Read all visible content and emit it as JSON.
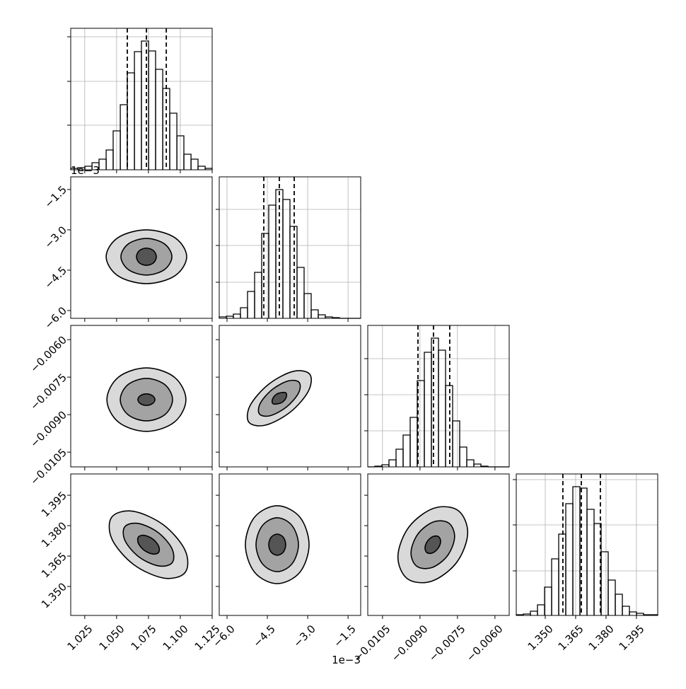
{
  "chart_data": {
    "type": "corner",
    "grid": true,
    "color": "#000000",
    "grid_color": "#b0b0b0",
    "contour_fills": [
      "#d9d9d9",
      "#a3a3a3",
      "#555555"
    ],
    "params": [
      {
        "lim": [
          1.014,
          1.125
        ],
        "ticks": [
          {
            "value": 1.025,
            "label": "1.025"
          },
          {
            "value": 1.05,
            "label": "1.050"
          },
          {
            "value": 1.075,
            "label": "1.075"
          },
          {
            "value": 1.1,
            "label": "1.100"
          },
          {
            "value": 1.125,
            "label": "1.125"
          }
        ],
        "quantiles": [
          1.0584,
          1.0734,
          1.089
        ],
        "hist": {
          "bins": [
            1.014,
            1.0196,
            1.0251,
            1.0307,
            1.0362,
            1.0418,
            1.0473,
            1.0529,
            1.0584,
            1.064,
            1.0695,
            1.0751,
            1.0806,
            1.0862,
            1.0917,
            1.0973,
            1.1028,
            1.1084,
            1.1139,
            1.1195,
            1.125
          ],
          "counts": [
            2,
            3,
            5,
            10,
            15,
            28,
            55,
            92,
            137,
            167,
            182,
            168,
            142,
            115,
            80,
            48,
            22,
            15,
            5,
            2
          ],
          "ylim": [
            0,
            200
          ],
          "yticks": [
            63,
            125,
            188
          ]
        }
      },
      {
        "lim": [
          -6.29,
          -1.03
        ],
        "offset_text": "1e−3",
        "ticks": [
          {
            "value": -6.0,
            "label": "−6.0"
          },
          {
            "value": -4.5,
            "label": "−4.5"
          },
          {
            "value": -3.0,
            "label": "−3.0"
          },
          {
            "value": -1.5,
            "label": "−1.5"
          }
        ],
        "quantiles": [
          -4.633,
          -4.055,
          -3.502
        ],
        "hist": {
          "bins": [
            -6.29,
            -6.027,
            -5.764,
            -5.501,
            -5.238,
            -4.975,
            -4.712,
            -4.449,
            -4.186,
            -3.923,
            -3.66,
            -3.397,
            -3.134,
            -2.871,
            -2.608,
            -2.345,
            -2.082,
            -1.819,
            -1.556,
            -1.293,
            -1.03
          ],
          "counts": [
            2,
            3,
            6,
            15,
            38,
            65,
            120,
            160,
            182,
            168,
            130,
            72,
            35,
            12,
            5,
            2,
            1,
            0,
            0,
            0
          ],
          "ylim": [
            0,
            200
          ],
          "yticks": [
            51,
            103,
            154
          ]
        }
      },
      {
        "lim": [
          -0.01109,
          -0.00543
        ],
        "ticks": [
          {
            "value": -0.0105,
            "label": "−0.0105"
          },
          {
            "value": -0.009,
            "label": "−0.0090"
          },
          {
            "value": -0.0075,
            "label": "−0.0075"
          },
          {
            "value": -0.006,
            "label": "−0.0060"
          }
        ],
        "quantiles": [
          -0.00908,
          -0.00846,
          -0.00781
        ],
        "hist": {
          "bins": [
            -0.01109,
            -0.010807,
            -0.010524,
            -0.010241,
            -0.009958,
            -0.009675,
            -0.009392,
            -0.009109,
            -0.008826,
            -0.008543,
            -0.00826,
            -0.007977,
            -0.007694,
            -0.007411,
            -0.007128,
            -0.006845,
            -0.006562,
            -0.006279,
            -0.005996,
            -0.005713,
            -0.00543
          ],
          "counts": [
            0,
            1,
            3,
            10,
            25,
            45,
            70,
            122,
            162,
            182,
            165,
            115,
            65,
            28,
            10,
            4,
            1,
            0,
            0,
            0
          ],
          "ylim": [
            0,
            200
          ],
          "yticks": [
            51,
            102,
            153
          ]
        }
      },
      {
        "lim": [
          1.3357,
          1.4055
        ],
        "ticks": [
          {
            "value": 1.35,
            "label": "1.350"
          },
          {
            "value": 1.365,
            "label": "1.365"
          },
          {
            "value": 1.38,
            "label": "1.380"
          },
          {
            "value": 1.395,
            "label": "1.395"
          }
        ],
        "quantiles": [
          1.3587,
          1.3678,
          1.3772
        ],
        "hist": {
          "bins": [
            1.3357,
            1.33919,
            1.34268,
            1.34617,
            1.34966,
            1.35315,
            1.35664,
            1.36013,
            1.36362,
            1.36711,
            1.3706,
            1.37409,
            1.37758,
            1.38107,
            1.38456,
            1.38805,
            1.39154,
            1.39503,
            1.39852,
            1.40201,
            1.4055
          ],
          "counts": [
            1,
            2,
            6,
            15,
            40,
            80,
            115,
            158,
            182,
            180,
            150,
            130,
            90,
            50,
            30,
            13,
            5,
            3,
            1,
            1
          ],
          "ylim": [
            0,
            200
          ],
          "yticks": [
            63,
            128,
            192
          ]
        }
      }
    ],
    "contours": [
      {
        "x_param": 0,
        "y_param": 1,
        "levels": [
          {
            "x": [
              1.105,
              1.0957,
              1.0734,
              1.0511,
              1.0418,
              1.0511,
              1.0734,
              1.0957
            ],
            "y": [
              -4.0,
              -3.29,
              -3.0,
              -3.29,
              -4.0,
              -4.71,
              -5.0,
              -4.71
            ]
          },
          {
            "x": [
              1.0934,
              1.0875,
              1.0734,
              1.0593,
              1.0534,
              1.0593,
              1.0734,
              1.0875
            ],
            "y": [
              -4.0,
              -3.52,
              -3.32,
              -3.52,
              -4.0,
              -4.48,
              -4.68,
              -4.48
            ]
          },
          {
            "x": [
              1.0812,
              1.0789,
              1.0734,
              1.0679,
              1.0656,
              1.0679,
              1.0734,
              1.0789
            ],
            "y": [
              -4.0,
              -3.77,
              -3.68,
              -3.77,
              -4.0,
              -4.23,
              -4.32,
              -4.23
            ]
          }
        ]
      },
      {
        "x_param": 0,
        "y_param": 2,
        "levels": [
          {
            "x": [
              1.1044,
              1.0953,
              1.0734,
              1.0515,
              1.0424,
              1.0515,
              1.0734,
              1.0953
            ],
            "y": [
              -0.0084,
              -0.0075,
              -0.00713,
              -0.0075,
              -0.0084,
              -0.0093,
              -0.00967,
              -0.0093
            ]
          },
          {
            "x": [
              1.0939,
              1.0879,
              1.0734,
              1.0589,
              1.0529,
              1.0589,
              1.0734,
              1.0879
            ],
            "y": [
              -0.0084,
              -0.0078,
              -0.00755,
              -0.0078,
              -0.0084,
              -0.009,
              -0.00925,
              -0.009
            ]
          },
          {
            "x": [
              1.0801,
              1.0781,
              1.0734,
              1.0687,
              1.0667,
              1.0687,
              1.0734,
              1.0781
            ],
            "y": [
              -0.0084,
              -0.00824,
              -0.00817,
              -0.00824,
              -0.0084,
              -0.00856,
              -0.00863,
              -0.00856
            ]
          }
        ]
      },
      {
        "x_param": 1,
        "y_param": 2,
        "levels": [
          {
            "x": [
              -2.924,
              -2.976,
              -3.647,
              -4.562,
              -5.185,
              -5.141,
              -4.462,
              -3.547
            ],
            "y": [
              -0.007383,
              -0.008062,
              -0.008897,
              -0.009417,
              -0.009307,
              -0.008636,
              -0.007793,
              -0.007272
            ]
          },
          {
            "x": [
              -3.316,
              -3.347,
              -3.794,
              -4.394,
              -4.794,
              -4.762,
              -4.315,
              -3.715
            ],
            "y": [
              -0.007714,
              -0.008147,
              -0.008699,
              -0.009041,
              -0.008976,
              -0.008543,
              -0.007992,
              -0.007649
            ]
          },
          {
            "x": [
              -3.807,
              -3.799,
              -3.941,
              -4.147,
              -4.302,
              -4.31,
              -4.168,
              -3.963
            ],
            "y": [
              -0.008135,
              -0.008308,
              -0.0085,
              -0.008574,
              -0.008554,
              -0.008382,
              -0.008189,
              -0.008116
            ]
          }
        ]
      },
      {
        "x_param": 0,
        "y_param": 3,
        "levels": [
          {
            "x": [
              1.1039,
              1.0873,
              1.0634,
              1.0464,
              1.0462,
              1.0628,
              1.0867,
              1.1037
            ],
            "y": [
              1.357,
              1.3541,
              1.3608,
              1.3733,
              1.3842,
              1.3871,
              1.3804,
              1.3679
            ]
          },
          {
            "x": [
              1.0937,
              1.0831,
              1.0677,
              1.0567,
              1.0564,
              1.067,
              1.0824,
              1.0934
            ],
            "y": [
              1.3618,
              1.3601,
              1.3645,
              1.3725,
              1.3794,
              1.3811,
              1.3767,
              1.3687
            ]
          },
          {
            "x": [
              1.083,
              1.0784,
              1.0717,
              1.0671,
              1.0671,
              1.0717,
              1.0784,
              1.083
            ],
            "y": [
              1.3668,
              1.366,
              1.3678,
              1.3713,
              1.3744,
              1.3752,
              1.3734,
              1.3699
            ]
          }
        ]
      },
      {
        "x_param": 1,
        "y_param": 3,
        "levels": [
          {
            "x": [
              -2.95,
              -3.292,
              -4.133,
              -4.975,
              -5.317,
              -4.975,
              -4.133,
              -3.292
            ],
            "y": [
              1.3706,
              1.3842,
              1.3898,
              1.3842,
              1.3706,
              1.357,
              1.3514,
              1.357
            ]
          },
          {
            "x": [
              -3.344,
              -3.581,
              -4.133,
              -4.686,
              -4.922,
              -4.686,
              -4.133,
              -3.581
            ],
            "y": [
              1.3706,
              1.38,
              1.3839,
              1.38,
              1.3706,
              1.3612,
              1.3573,
              1.3612
            ]
          },
          {
            "x": [
              -3.818,
              -3.91,
              -4.133,
              -4.357,
              -4.449,
              -4.357,
              -4.133,
              -3.91
            ],
            "y": [
              1.3706,
              1.3743,
              1.3758,
              1.3743,
              1.3706,
              1.3669,
              1.3654,
              1.3669
            ]
          }
        ]
      },
      {
        "x_param": 2,
        "y_param": 3,
        "levels": [
          {
            "x": [
              -0.007468,
              -0.007091,
              -0.007536,
              -0.008535,
              -0.009505,
              -0.009882,
              -0.009437,
              -0.008438
            ],
            "y": [
              1.3874,
              1.3762,
              1.3618,
              1.3526,
              1.3538,
              1.365,
              1.3794,
              1.3886
            ]
          },
          {
            "x": [
              -0.007841,
              -0.007615,
              -0.007898,
              -0.008526,
              -0.009132,
              -0.009358,
              -0.009075,
              -0.008447
            ],
            "y": [
              1.3812,
              1.3743,
              1.3652,
              1.3593,
              1.36,
              1.3669,
              1.376,
              1.3819
            ]
          },
          {
            "x": [
              -0.008249,
              -0.008175,
              -0.008283,
              -0.008509,
              -0.008724,
              -0.008798,
              -0.00869,
              -0.008464
            ],
            "y": [
              1.3745,
              1.372,
              1.3687,
              1.3665,
              1.3667,
              1.3692,
              1.3725,
              1.3747
            ]
          }
        ]
      }
    ]
  }
}
